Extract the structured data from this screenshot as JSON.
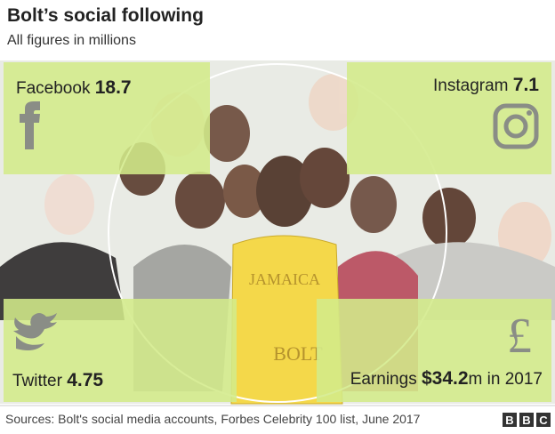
{
  "header": {
    "title": "Bolt’s social following",
    "subtitle": "All figures in millions"
  },
  "panels": [
    {
      "label": "Facebook",
      "value": 18.7
    },
    {
      "label": "Instagram",
      "value": 7.1
    },
    {
      "label": "Twitter",
      "value": 4.75
    },
    {
      "label": "Earnings",
      "value_label": "$34.2",
      "suffix": "m in 2017"
    }
  ],
  "footer": {
    "source": "Sources: Bolt's social media accounts, Forbes Celebrity 100 list, June 2017",
    "logo": [
      "B",
      "B",
      "C"
    ]
  }
}
